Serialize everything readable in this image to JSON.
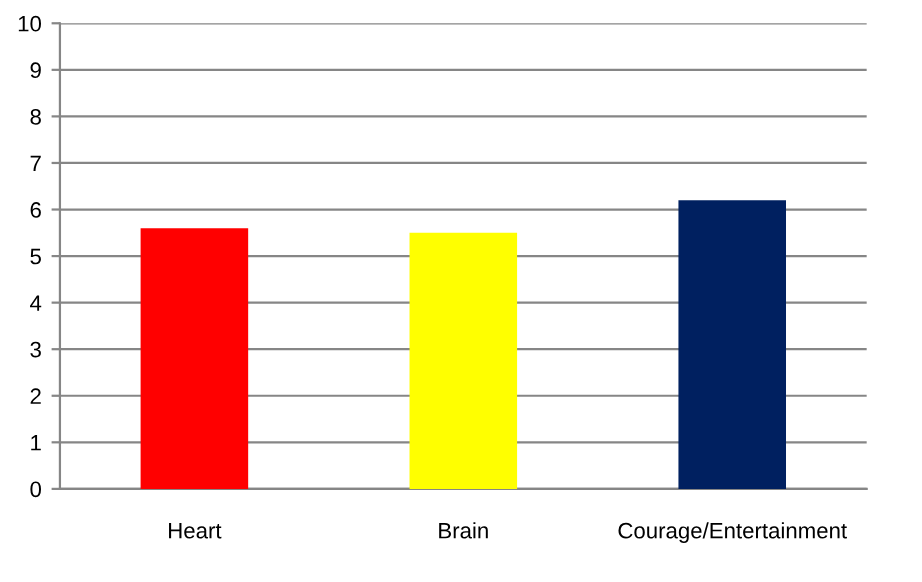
{
  "chart_data": {
    "type": "bar",
    "categories": [
      "Heart",
      "Brain",
      "Courage/Entertainment"
    ],
    "values": [
      5.6,
      5.5,
      6.2
    ],
    "colors": [
      "#ff0000",
      "#ffff00",
      "#002060"
    ],
    "ylim": [
      0,
      10
    ],
    "yticks": [
      0,
      1,
      2,
      3,
      4,
      5,
      6,
      7,
      8,
      9,
      10
    ],
    "grid": "y"
  }
}
